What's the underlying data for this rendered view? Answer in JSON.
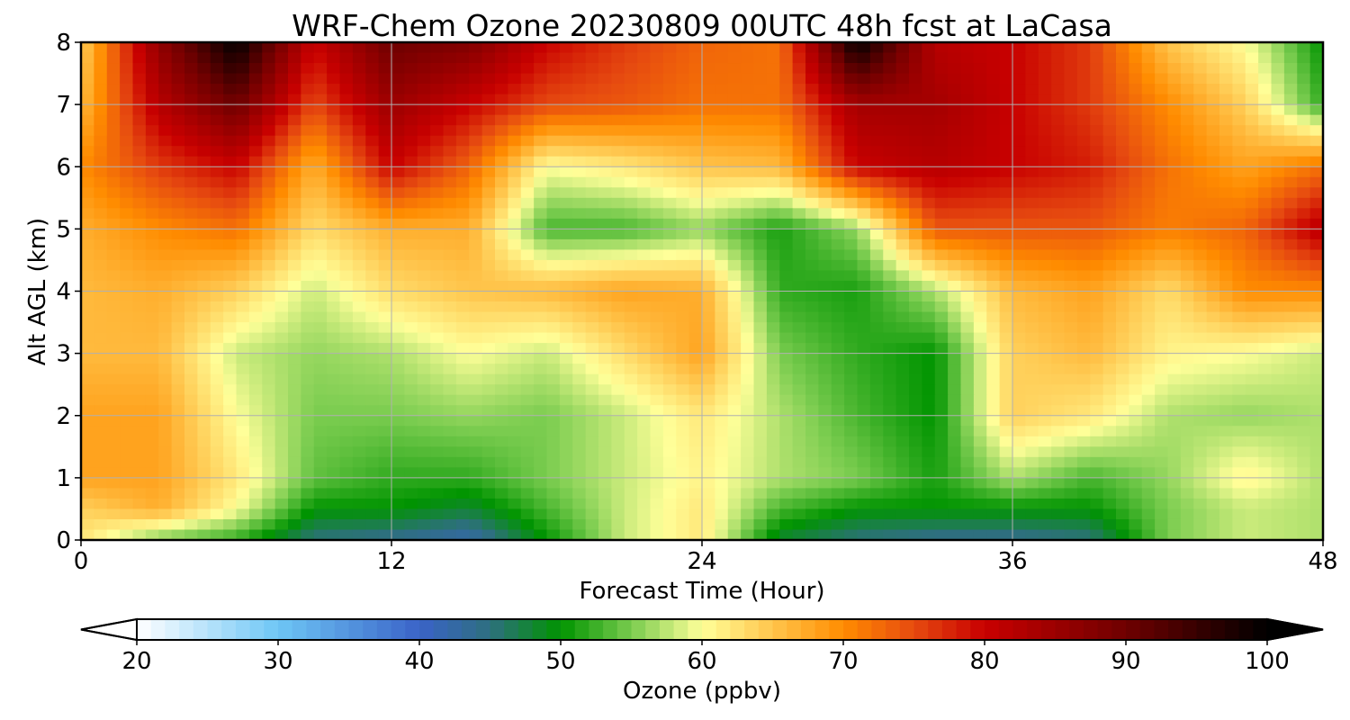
{
  "chart_data": {
    "type": "heatmap",
    "title": "WRF-Chem Ozone  20230809 00UTC 48h fcst at LaCasa",
    "xlabel": "Forecast Time (Hour)",
    "ylabel": "Alt AGL (km)",
    "xlim": [
      0,
      48
    ],
    "ylim": [
      0,
      8
    ],
    "x_ticks": [
      0,
      12,
      24,
      36,
      48
    ],
    "y_ticks": [
      0,
      1,
      2,
      3,
      4,
      5,
      6,
      7,
      8
    ],
    "grid": true,
    "x": [
      0,
      3,
      6,
      9,
      12,
      15,
      18,
      21,
      24,
      27,
      30,
      33,
      36,
      39,
      42,
      45,
      48
    ],
    "y": [
      0,
      0.5,
      1,
      2,
      3,
      4,
      5,
      6,
      7,
      8
    ],
    "z": [
      [
        62,
        55,
        52,
        45,
        44,
        42,
        50,
        58,
        62,
        48,
        45,
        44,
        44,
        45,
        55,
        58,
        57
      ],
      [
        64,
        67,
        60,
        50,
        50,
        48,
        53,
        58,
        62,
        53,
        50,
        50,
        50,
        50,
        55,
        58,
        57
      ],
      [
        68,
        68,
        62,
        54,
        52,
        52,
        55,
        58,
        61,
        57,
        55,
        51,
        57,
        53,
        56,
        61,
        57
      ],
      [
        68,
        68,
        60,
        55,
        55,
        56,
        55,
        58,
        62,
        57,
        53,
        50,
        64,
        62,
        57,
        56,
        57
      ],
      [
        66,
        66,
        58,
        56,
        57,
        60,
        58,
        63,
        68,
        55,
        52,
        50,
        64,
        66,
        61,
        60,
        58
      ],
      [
        66,
        67,
        64,
        58,
        63,
        65,
        66,
        68,
        67,
        52,
        51,
        57,
        66,
        68,
        63,
        70,
        70
      ],
      [
        67,
        70,
        72,
        63,
        67,
        67,
        53,
        53,
        56,
        51,
        56,
        74,
        74,
        74,
        71,
        73,
        82
      ],
      [
        70,
        76,
        80,
        67,
        80,
        73,
        60,
        62,
        65,
        66,
        80,
        82,
        80,
        78,
        72,
        68,
        72
      ],
      [
        66,
        82,
        90,
        75,
        85,
        80,
        75,
        74,
        72,
        72,
        84,
        84,
        80,
        76,
        70,
        64,
        52
      ],
      [
        64,
        86,
        100,
        80,
        90,
        88,
        80,
        76,
        73,
        72,
        100,
        82,
        80,
        76,
        65,
        60,
        50
      ]
    ],
    "colorbar": {
      "label": "Ozone  (ppbv)",
      "min": 20,
      "max": 100,
      "ticks": [
        20,
        30,
        40,
        50,
        60,
        70,
        80,
        90,
        100
      ],
      "extend": "both",
      "stops": [
        {
          "v": 20,
          "c": "#ffffff"
        },
        {
          "v": 30,
          "c": "#6ec6f5"
        },
        {
          "v": 40,
          "c": "#3a63c8"
        },
        {
          "v": 45,
          "c": "#2e6f7f"
        },
        {
          "v": 50,
          "c": "#009400"
        },
        {
          "v": 55,
          "c": "#7acc4f"
        },
        {
          "v": 60,
          "c": "#ffff99"
        },
        {
          "v": 65,
          "c": "#ffc54c"
        },
        {
          "v": 70,
          "c": "#ff8c00"
        },
        {
          "v": 75,
          "c": "#e64a10"
        },
        {
          "v": 80,
          "c": "#c80000"
        },
        {
          "v": 90,
          "c": "#6e0000"
        },
        {
          "v": 100,
          "c": "#000000"
        }
      ]
    }
  }
}
